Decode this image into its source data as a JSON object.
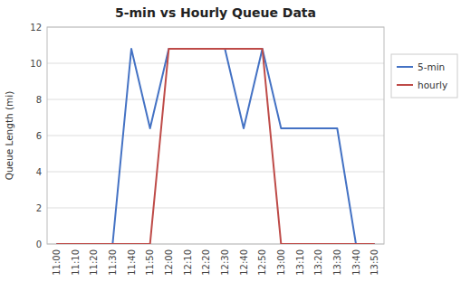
{
  "chart_data": {
    "type": "line",
    "title": "5-min vs Hourly Queue Data",
    "ylabel": "Queue Length (mi)",
    "categories": [
      "11:00",
      "11:10",
      "11:20",
      "11:30",
      "11:40",
      "11:50",
      "12:00",
      "12:10",
      "12:20",
      "12:30",
      "12:40",
      "12:50",
      "13:00",
      "13:10",
      "13:20",
      "13:30",
      "13:40",
      "13:50"
    ],
    "series": [
      {
        "name": "5-min",
        "color": "#4472C4",
        "values": [
          0,
          0,
          0,
          0,
          10.8,
          6.4,
          10.8,
          10.8,
          10.8,
          10.8,
          6.4,
          10.8,
          6.4,
          6.4,
          6.4,
          6.4,
          0,
          0
        ]
      },
      {
        "name": "hourly",
        "color": "#BE4B48",
        "values": [
          0,
          0,
          0,
          0,
          0,
          0,
          10.8,
          10.8,
          10.8,
          10.8,
          10.8,
          10.8,
          0,
          0,
          0,
          0,
          0,
          0
        ]
      }
    ],
    "ylim": [
      0,
      12
    ],
    "yticks": [
      0,
      2,
      4,
      6,
      8,
      10,
      12
    ],
    "grid": true,
    "legend": "right"
  }
}
